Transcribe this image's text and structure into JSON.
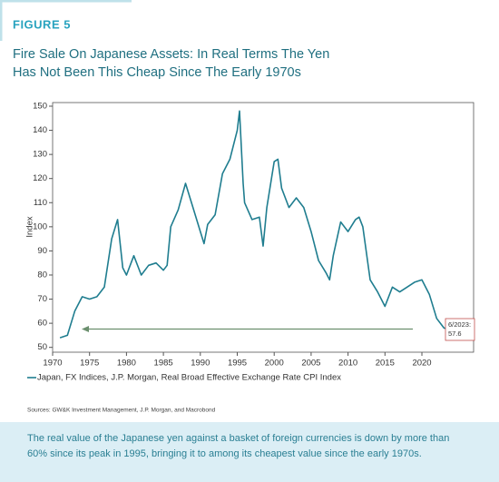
{
  "chart_data": {
    "type": "line",
    "figure_label": "FIGURE 5",
    "title": [
      "Fire Sale On Japanese Assets: In Real Terms The Yen",
      "Has Not Been This Cheap Since The Early 1970s"
    ],
    "y_label": "Index",
    "x": [
      1971,
      1972,
      1973,
      1974,
      1975,
      1976,
      1977,
      1978,
      1978.8,
      1979.5,
      1980,
      1981,
      1982,
      1983,
      1984,
      1985,
      1985.5,
      1986,
      1987,
      1988,
      1989,
      1990,
      1990.5,
      1991,
      1992,
      1993,
      1994,
      1995,
      1995.3,
      1995.8,
      1996,
      1997,
      1998,
      1998.5,
      1999,
      2000,
      2000.5,
      2001,
      2002,
      2003,
      2004,
      2005,
      2006,
      2007,
      2007.5,
      2008,
      2009,
      2010,
      2011,
      2011.5,
      2012,
      2013,
      2014,
      2015,
      2016,
      2017,
      2018,
      2019,
      2020,
      2021,
      2022,
      2023,
      2023.5
    ],
    "series": [
      {
        "name": "Japan, FX Indices, J.P. Morgan, Real Broad Effective Exchange Rate CPI Index",
        "color": "#1f7d8f",
        "values": [
          54,
          55,
          65,
          71,
          70,
          71,
          75,
          95,
          103,
          83,
          80,
          88,
          80,
          84,
          85,
          82,
          84,
          100,
          107,
          118,
          108,
          98,
          93,
          101,
          105,
          122,
          128,
          140,
          148,
          118,
          110,
          103,
          104,
          92,
          108,
          127,
          128,
          116,
          108,
          112,
          108,
          98,
          86,
          81,
          78,
          88,
          102,
          98,
          103,
          104,
          100,
          78,
          73,
          67,
          75,
          73,
          75,
          77,
          78,
          72,
          62,
          58,
          57.6
        ]
      }
    ],
    "annotation": "6/2023:",
    "xlim": [
      1970,
      2027
    ],
    "ylim": [
      48,
      151.5
    ],
    "xticks": [
      1970,
      1975,
      1980,
      1985,
      1990,
      1995,
      2000,
      2005,
      2010,
      2015,
      2020
    ],
    "yticks": [
      50,
      60,
      70,
      80,
      90,
      100,
      110,
      120,
      130,
      140,
      150
    ],
    "source": "Sources: GW&K Investment Management, J.P. Morgan, and Macrobond",
    "caption": [
      "The real value of the Japanese yen against a basket of foreign currencies is down by more than",
      "60% since its peak in 1995, bringing it to among its cheapest value since the early 1970s."
    ]
  }
}
